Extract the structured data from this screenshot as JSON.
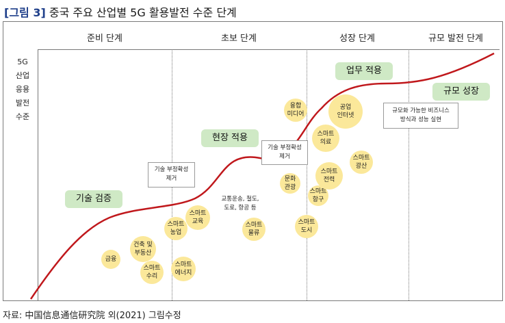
{
  "figure": {
    "label": "[그림 3]",
    "title": "중국 주요 산업별 5G 활용발전 수준 단계"
  },
  "source": "자료: 中国信息通信研究院 외(2021) 그림수정",
  "y_axis_label": "5G\n산업\n응용\n발전\n수준",
  "phases": [
    "준비 단계",
    "초보 단계",
    "성장 단계",
    "규모 발전 단계"
  ],
  "stages": [
    "기술 검증",
    "현장 적용",
    "업무 적용",
    "규모 성장"
  ],
  "notes": {
    "n1": "기술 부정확성\n제거",
    "n2": "기술 부정확성\n제거",
    "n3": "규모화 가능한 비즈니스\n방식과 성능 실현",
    "n4": "교통운송, 철도,\n도로, 항공 등"
  },
  "bubbles": {
    "b1": "금융",
    "b2": "건축 및\n부동산",
    "b3": "스마트\n수리",
    "b4": "스마트\n에너지",
    "b5": "스마트\n농업",
    "b6": "스마트\n교육",
    "b7": "스마트\n물류",
    "b8": "문화\n관광",
    "b9": "스마트\n도시",
    "b10": "스마트\n항구",
    "b11": "스마트\n전력",
    "b12": "스마트\n광산",
    "b13": "스마트\n의료",
    "b14": "융합\n미디어",
    "b15": "공업\n인터넷"
  },
  "colors": {
    "curve": "#c0181c",
    "stage_box": "#cfe9c5",
    "bubble": "#fbe89a",
    "title_label": "#1f3f8a"
  }
}
